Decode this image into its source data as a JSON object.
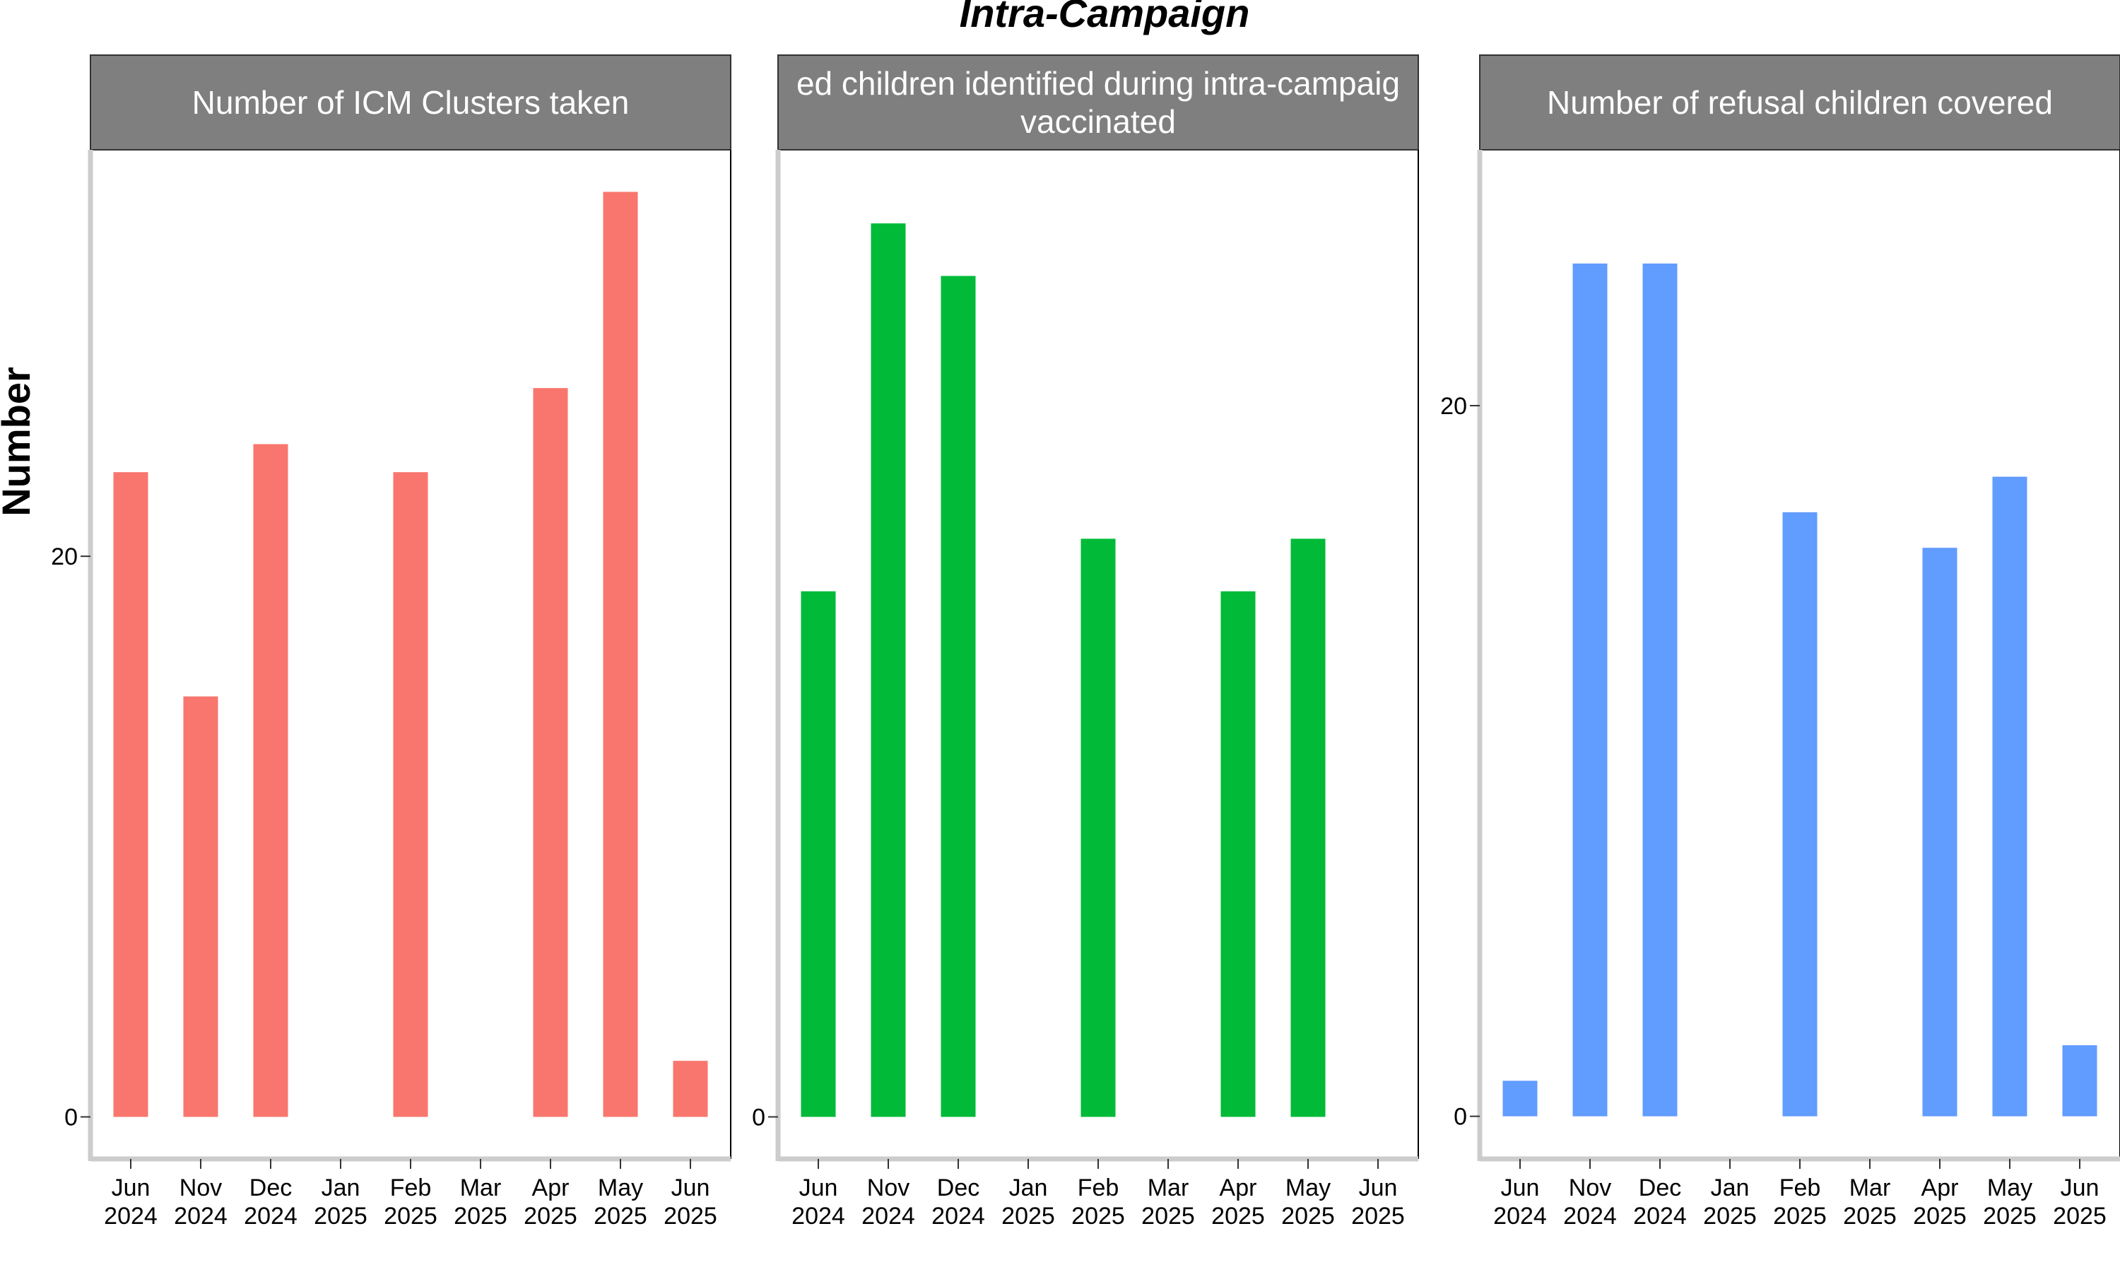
{
  "chart_data": {
    "type": "bar",
    "title": "Intra-Campaign",
    "ylabel": "Number",
    "xlabel": "",
    "categories": [
      "Jun\n2024",
      "Nov\n2024",
      "Dec\n2024",
      "Jan\n2025",
      "Feb\n2025",
      "Mar\n2025",
      "Apr\n2025",
      "May\n2025",
      "Jun\n2025"
    ],
    "grid": false,
    "legend": "none",
    "facet_strip_color": "#7f7f7f",
    "axis_line_color": "#cccccc",
    "panels": [
      {
        "strip": "Number of ICM Clusters taken",
        "color": "#f8766d",
        "ylim": [
          -1.5,
          34.5
        ],
        "yticks": [
          0,
          20
        ],
        "values": [
          23,
          15,
          24,
          null,
          23,
          null,
          26,
          33,
          2
        ]
      },
      {
        "strip": "Number of missed children identified during intra-campaign vaccinated",
        "strip_lines": [
          "ed children identified during intra-campaig",
          "vaccinated"
        ],
        "color": "#00ba38",
        "ylim": [
          -0.8,
          18.4
        ],
        "yticks": [
          0
        ],
        "values": [
          10,
          17,
          16,
          null,
          11,
          null,
          10,
          11,
          null
        ]
      },
      {
        "strip": "Number of refusal children covered",
        "color": "#619cff",
        "ylim": [
          -1.2,
          27.2
        ],
        "yticks": [
          0,
          20
        ],
        "values": [
          1,
          24,
          24,
          null,
          17,
          null,
          16,
          18,
          2
        ]
      }
    ]
  }
}
